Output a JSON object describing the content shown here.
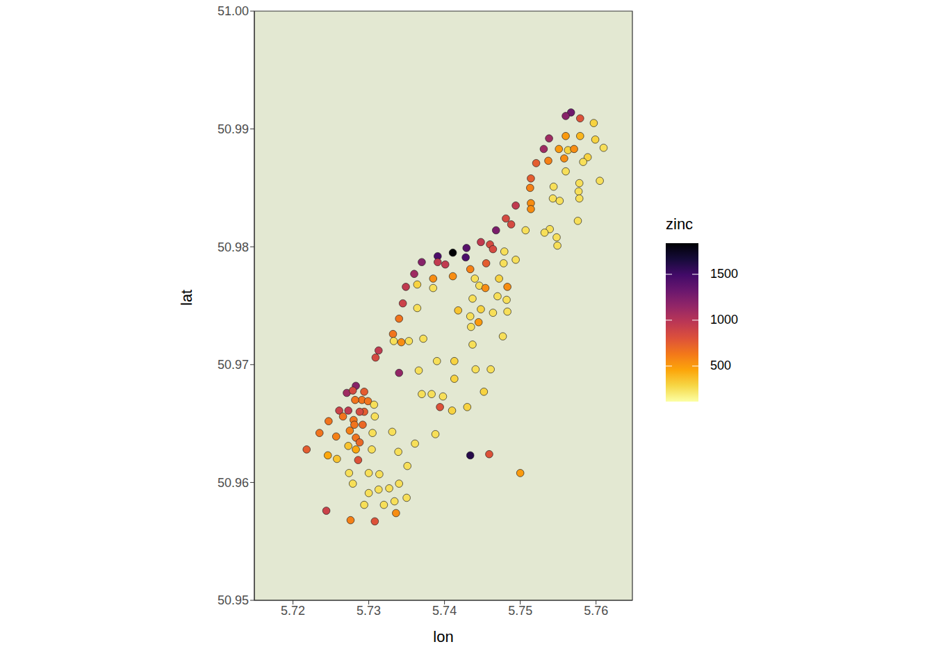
{
  "chart_data": {
    "type": "scatter",
    "x_label": "lon",
    "y_label": "lat",
    "grid": false,
    "xlim": [
      5.7149,
      5.7648
    ],
    "ylim": [
      50.95,
      51.0
    ],
    "xticks": [
      5.72,
      5.73,
      5.74,
      5.75,
      5.76
    ],
    "yticks": [
      50.95,
      50.96,
      50.97,
      50.98,
      50.99,
      {
        "value": 51,
        "label": "51.00"
      }
    ],
    "colorbar": {
      "title": "zinc",
      "range": [
        113,
        1839
      ],
      "ticks": [
        500,
        1000,
        1500
      ]
    },
    "x": [
      5.7567,
      5.756,
      5.7579,
      5.7597,
      5.7538,
      5.756,
      5.7579,
      5.7599,
      5.761,
      5.7551,
      5.7563,
      5.7571,
      5.7531,
      5.7589,
      5.7583,
      5.7558,
      5.7521,
      5.7537,
      5.756,
      5.7605,
      5.7514,
      5.7578,
      5.7577,
      5.7544,
      5.7513,
      5.7578,
      5.7543,
      5.7514,
      5.7514,
      5.7494,
      5.7552,
      5.7576,
      5.7468,
      5.7481,
      5.7488,
      5.7539,
      5.7532,
      5.7548,
      5.7549,
      5.7507,
      5.746,
      5.7448,
      5.7464,
      5.7429,
      5.7428,
      5.7411,
      5.7391,
      5.7401,
      5.7391,
      5.737,
      5.7455,
      5.7434,
      5.7479,
      5.7494,
      5.7478,
      5.7411,
      5.736,
      5.7364,
      5.7385,
      5.7385,
      5.7349,
      5.744,
      5.7446,
      5.7472,
      5.7483,
      5.7454,
      5.747,
      5.7437,
      5.7482,
      5.7345,
      5.7364,
      5.7418,
      5.7448,
      5.7464,
      5.7483,
      5.734,
      5.7434,
      5.7445,
      5.7435,
      5.7332,
      5.7333,
      5.7343,
      5.7353,
      5.7477,
      5.7372,
      5.7437,
      5.7313,
      5.7309,
      5.739,
      5.7413,
      5.7366,
      5.734,
      5.7441,
      5.7461,
      5.7413,
      5.7271,
      5.7283,
      5.7279,
      5.7294,
      5.7291,
      5.7299,
      5.7282,
      5.7273,
      5.7294,
      5.7261,
      5.7307,
      5.7288,
      5.7308,
      5.7266,
      5.728,
      5.7281,
      5.7292,
      5.7247,
      5.737,
      5.7383,
      5.7398,
      5.741,
      5.743,
      5.7452,
      5.7394,
      5.7388,
      5.7361,
      5.7275,
      5.7283,
      5.7288,
      5.7305,
      5.7331,
      5.7235,
      5.7257,
      5.7273,
      5.7283,
      5.7218,
      5.7246,
      5.7258,
      5.7286,
      5.7339,
      5.7304,
      5.7351,
      5.7434,
      5.7459,
      5.75,
      5.7274,
      5.73,
      5.7314,
      5.7279,
      5.734,
      5.73,
      5.7313,
      5.7327,
      5.735,
      5.7294,
      5.732,
      5.7334,
      5.7244,
      5.7276,
      5.7308,
      5.7336
    ],
    "y": [
      50.9914,
      50.9911,
      50.9909,
      50.9905,
      50.9892,
      50.9894,
      50.9894,
      50.9891,
      50.9884,
      50.9883,
      50.9882,
      50.9883,
      50.9883,
      50.9876,
      50.9872,
      50.9875,
      50.9871,
      50.9873,
      50.9864,
      50.9856,
      50.9858,
      50.9854,
      50.9847,
      50.9851,
      50.985,
      50.9841,
      50.9841,
      50.9837,
      50.9832,
      50.9835,
      50.9839,
      50.9822,
      50.9814,
      50.9824,
      50.9819,
      50.9815,
      50.9812,
      50.9808,
      50.9801,
      50.9814,
      50.9802,
      50.9804,
      50.9798,
      50.9799,
      50.9791,
      50.9795,
      50.9792,
      50.9785,
      50.9787,
      50.9787,
      50.9786,
      50.9781,
      50.9796,
      50.9789,
      50.9786,
      50.9775,
      50.9777,
      50.9768,
      50.9773,
      50.9765,
      50.9766,
      50.9773,
      50.9767,
      50.9773,
      50.9766,
      50.9765,
      50.9758,
      50.9756,
      50.9755,
      50.9752,
      50.9748,
      50.9746,
      50.9747,
      50.9744,
      50.9745,
      50.9739,
      50.9741,
      50.9736,
      50.9732,
      50.9726,
      50.972,
      50.9719,
      50.972,
      50.9724,
      50.9722,
      50.9717,
      50.9712,
      50.9706,
      50.9703,
      50.9703,
      50.9695,
      50.9693,
      50.9696,
      50.9696,
      50.9688,
      50.9676,
      50.9682,
      50.9678,
      50.9677,
      50.967,
      50.9669,
      50.967,
      50.9661,
      50.966,
      50.9661,
      50.9666,
      50.966,
      50.9656,
      50.9656,
      50.9653,
      50.9649,
      50.9649,
      50.9652,
      50.9675,
      50.9675,
      50.9673,
      50.9661,
      50.9664,
      50.9677,
      50.9664,
      50.9641,
      50.9633,
      50.9644,
      50.9638,
      50.9634,
      50.9642,
      50.9643,
      50.9642,
      50.9639,
      50.9631,
      50.9628,
      50.9628,
      50.9623,
      50.962,
      50.9619,
      50.9626,
      50.9628,
      50.9614,
      50.9623,
      50.9624,
      50.9608,
      50.9608,
      50.9608,
      50.9607,
      50.9599,
      50.9599,
      50.9591,
      50.9594,
      50.9595,
      50.9587,
      50.9581,
      50.9581,
      50.9584,
      50.9576,
      50.9568,
      50.9567,
      50.9574
    ],
    "zinc": [
      1300,
      1200,
      800,
      300,
      1100,
      500,
      400,
      300,
      250,
      500,
      300,
      550,
      1100,
      300,
      250,
      550,
      750,
      600,
      250,
      250,
      750,
      250,
      250,
      250,
      600,
      250,
      250,
      550,
      550,
      950,
      250,
      250,
      1250,
      850,
      850,
      250,
      250,
      250,
      250,
      250,
      850,
      950,
      850,
      1400,
      1450,
      1839,
      1450,
      950,
      950,
      1200,
      750,
      600,
      250,
      250,
      250,
      550,
      1100,
      300,
      550,
      250,
      950,
      250,
      250,
      300,
      550,
      550,
      250,
      250,
      250,
      900,
      250,
      350,
      300,
      250,
      250,
      650,
      250,
      500,
      250,
      650,
      250,
      550,
      250,
      250,
      250,
      250,
      950,
      850,
      250,
      300,
      250,
      1150,
      250,
      250,
      300,
      1100,
      1200,
      850,
      750,
      650,
      650,
      650,
      950,
      750,
      900,
      250,
      850,
      250,
      650,
      650,
      650,
      700,
      650,
      250,
      250,
      250,
      300,
      300,
      300,
      800,
      250,
      250,
      600,
      650,
      700,
      250,
      250,
      650,
      600,
      350,
      450,
      750,
      450,
      350,
      800,
      250,
      250,
      250,
      1600,
      800,
      500,
      250,
      250,
      250,
      250,
      250,
      250,
      250,
      250,
      250,
      250,
      250,
      250,
      900,
      600,
      800,
      550
    ]
  }
}
